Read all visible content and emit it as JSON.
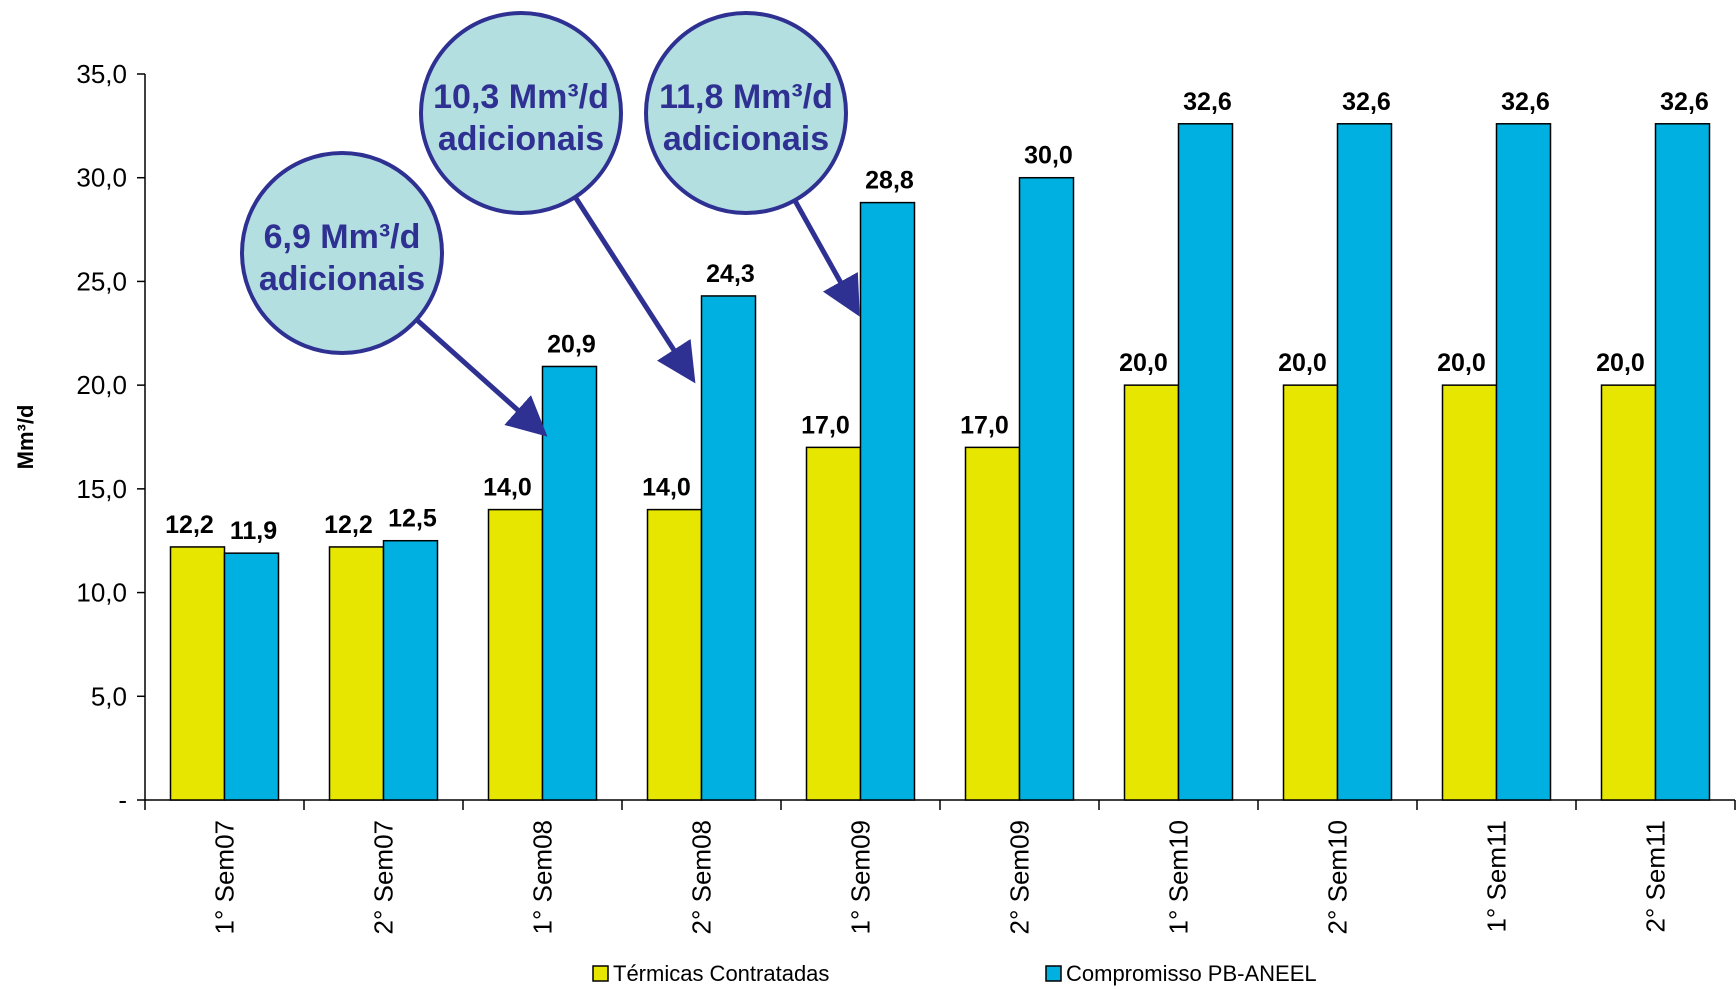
{
  "chart_data": {
    "type": "bar",
    "ylabel": "Mm³/d",
    "ylim": [
      0,
      35
    ],
    "ytick_labels": [
      "-",
      "5,0",
      "10,0",
      "15,0",
      "20,0",
      "25,0",
      "30,0",
      "35,0"
    ],
    "categories": [
      "1° Sem07",
      "2° Sem07",
      "1° Sem08",
      "2° Sem08",
      "1° Sem09",
      "2° Sem09",
      "1° Sem10",
      "2° Sem10",
      "1° Sem11",
      "2° Sem11"
    ],
    "series": [
      {
        "name": "Térmicas Contratadas",
        "color": "#e6e600",
        "values": [
          12.2,
          12.2,
          14.0,
          14.0,
          17.0,
          17.0,
          20.0,
          20.0,
          20.0,
          20.0
        ],
        "labels": [
          "12,2",
          "12,2",
          "14,0",
          "14,0",
          "17,0",
          "17,0",
          "20,0",
          "20,0",
          "20,0",
          "20,0"
        ]
      },
      {
        "name": "Compromisso PB-ANEEL",
        "color": "#00b0e0",
        "values": [
          11.9,
          12.5,
          20.9,
          24.3,
          28.8,
          30.0,
          32.6,
          32.6,
          32.6,
          32.6
        ],
        "labels": [
          "11,9",
          "12,5",
          "20,9",
          "24,3",
          "28,8",
          "30,0",
          "32,6",
          "32,6",
          "32,6",
          "32,6"
        ]
      }
    ],
    "grid": false,
    "legend_position": "bottom",
    "annotations": [
      {
        "line1": "6,9 Mm³/d",
        "line2": "adicionais",
        "points_to": "1° Sem08"
      },
      {
        "line1": "10,3 Mm³/d",
        "line2": "adicionais",
        "points_to": "2° Sem08"
      },
      {
        "line1": "11,8 Mm³/d",
        "line2": "adicionais",
        "points_to": "1° Sem09"
      }
    ],
    "annotation_style": {
      "fill": "#b4dfe0",
      "stroke": "#2e3192",
      "text_color": "#2e3192"
    }
  }
}
